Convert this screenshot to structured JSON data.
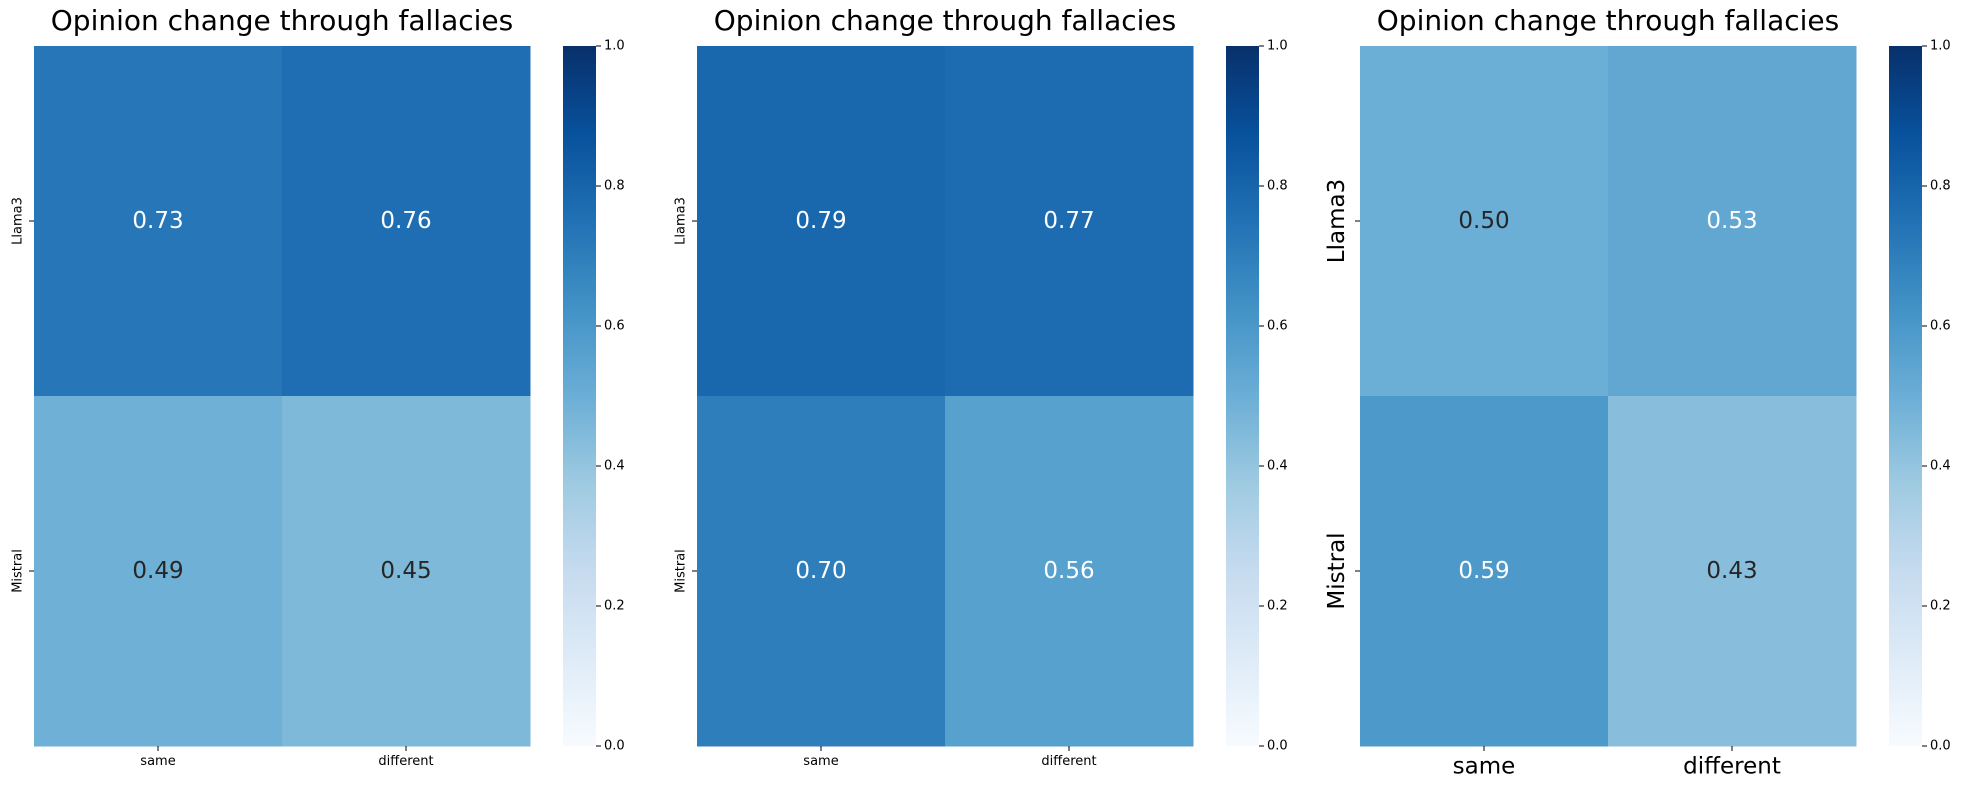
{
  "chart_data": [
    {
      "type": "heatmap",
      "title": "Opinion change through fallacies",
      "rows": [
        "Llama3",
        "Mistral"
      ],
      "columns": [
        "same",
        "different"
      ],
      "values": [
        [
          0.73,
          0.76
        ],
        [
          0.49,
          0.45
        ]
      ],
      "value_labels": [
        [
          "0.73",
          "0.76"
        ],
        [
          "0.49",
          "0.45"
        ]
      ],
      "colormap": "Blues",
      "vmin": 0.0,
      "vmax": 1.0,
      "colorbar_ticks": [
        "0.0",
        "0.2",
        "0.4",
        "0.6",
        "0.8",
        "1.0"
      ]
    },
    {
      "type": "heatmap",
      "title": "Opinion change through fallacies",
      "rows": [
        "Llama3",
        "Mistral"
      ],
      "columns": [
        "same",
        "different"
      ],
      "values": [
        [
          0.79,
          0.77
        ],
        [
          0.7,
          0.56
        ]
      ],
      "value_labels": [
        [
          "0.79",
          "0.77"
        ],
        [
          "0.70",
          "0.56"
        ]
      ],
      "colormap": "Blues",
      "vmin": 0.0,
      "vmax": 1.0,
      "colorbar_ticks": [
        "0.0",
        "0.2",
        "0.4",
        "0.6",
        "0.8",
        "1.0"
      ]
    },
    {
      "type": "heatmap",
      "title": "Opinion change through fallacies",
      "rows": [
        "Llama3",
        "Mistral"
      ],
      "columns": [
        "same",
        "different"
      ],
      "values": [
        [
          0.5,
          0.53
        ],
        [
          0.59,
          0.43
        ]
      ],
      "value_labels": [
        [
          "0.50",
          "0.53"
        ],
        [
          "0.59",
          "0.43"
        ]
      ],
      "colormap": "Blues",
      "vmin": 0.0,
      "vmax": 1.0,
      "colorbar_ticks": [
        "0.0",
        "0.2",
        "0.4",
        "0.6",
        "0.8",
        "1.0"
      ]
    }
  ]
}
